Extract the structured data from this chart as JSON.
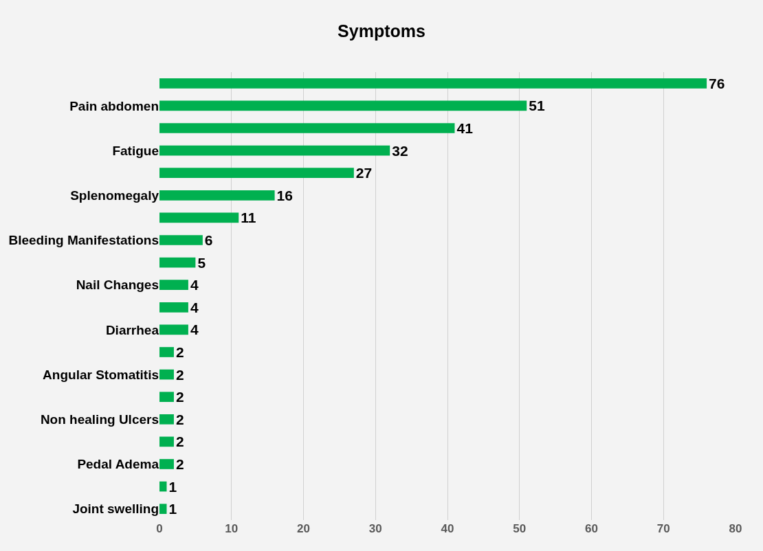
{
  "chart_data": {
    "type": "bar",
    "title": "Symptoms",
    "orientation": "horizontal",
    "categories": [
      null,
      "Pain abdomen",
      null,
      "Fatigue",
      null,
      "Splenomegaly",
      null,
      "Bleeding Manifestations",
      null,
      "Nail Changes",
      null,
      "Diarrhea",
      null,
      "Angular Stomatitis",
      null,
      "Non healing Ulcers",
      null,
      "Pedal Adema",
      null,
      "Joint swelling"
    ],
    "values": [
      76,
      51,
      41,
      32,
      27,
      16,
      11,
      6,
      5,
      4,
      4,
      4,
      2,
      2,
      2,
      2,
      2,
      2,
      1,
      1
    ],
    "color": "#00b050",
    "xlim": [
      0,
      80
    ],
    "xticks": [
      0,
      10,
      20,
      30,
      40,
      50,
      60,
      70,
      80
    ],
    "grid": "x",
    "data_labels": true,
    "legend": false
  }
}
